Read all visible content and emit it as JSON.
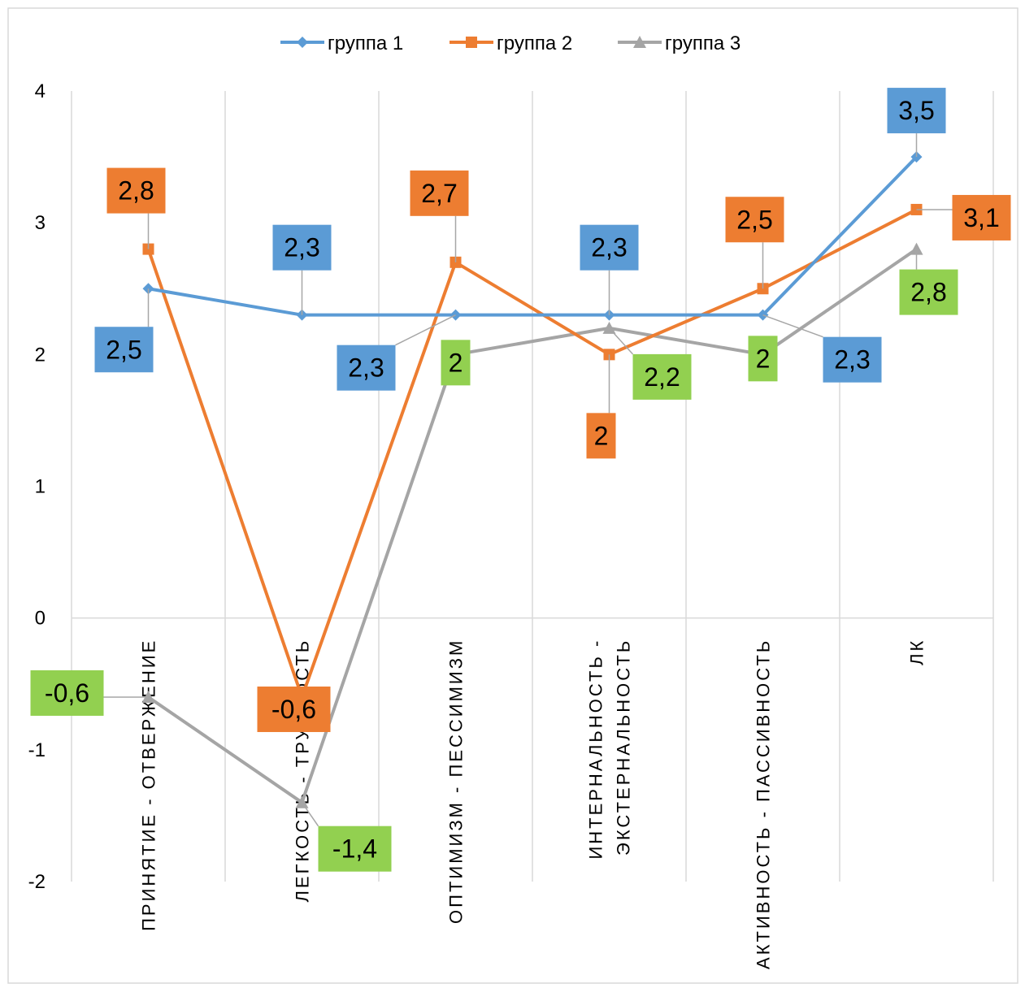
{
  "chart_data": {
    "type": "line",
    "title": "",
    "xlabel": "",
    "ylabel": "",
    "ylim": [
      -2,
      4
    ],
    "y_ticks": [
      "4",
      "3",
      "2",
      "1",
      "0",
      "-1",
      "-2"
    ],
    "y_tick_values": [
      4,
      3,
      2,
      1,
      0,
      -1,
      -2
    ],
    "grid": "vertical category separators",
    "legend_position": "top",
    "categories": [
      [
        "ПРИНЯТИЕ - ОТВЕРЖЕНИЕ"
      ],
      [
        "ЛЕГКОСТЬ - ТРУДНОСТЬ"
      ],
      [
        "ОПТИМИЗМ - ПЕССИМИЗМ"
      ],
      [
        "ИНТЕРНАЛЬНОСТЬ -",
        "ЭКСТЕРНАЛЬНОСТЬ"
      ],
      [
        "АКТИВНОСТЬ - ПАССИВНОСТЬ"
      ],
      [
        "ЛК"
      ]
    ],
    "series": [
      {
        "name": "группа 1",
        "color": "#5B9BD5",
        "marker": "diamond",
        "values": [
          2.5,
          2.3,
          2.3,
          2.3,
          2.3,
          3.5
        ],
        "labels": [
          "2,5",
          "2,3",
          "2,3",
          "2,3",
          "2,3",
          "3,5"
        ]
      },
      {
        "name": "группа 2",
        "color": "#ED7D31",
        "marker": "square",
        "values": [
          2.8,
          -0.6,
          2.7,
          2.0,
          2.5,
          3.1
        ],
        "labels": [
          "2,8",
          "-0,6",
          "2,7",
          "2",
          "2,5",
          "3,1"
        ]
      },
      {
        "name": "группа 3",
        "color": "#A5A5A5",
        "marker": "triangle",
        "label_fill": "#92D050",
        "values": [
          -0.6,
          -1.4,
          2.0,
          2.2,
          2.0,
          2.8
        ],
        "labels": [
          "-0,6",
          "-1,4",
          "2",
          "2,2",
          "2",
          "2,8"
        ]
      }
    ]
  }
}
